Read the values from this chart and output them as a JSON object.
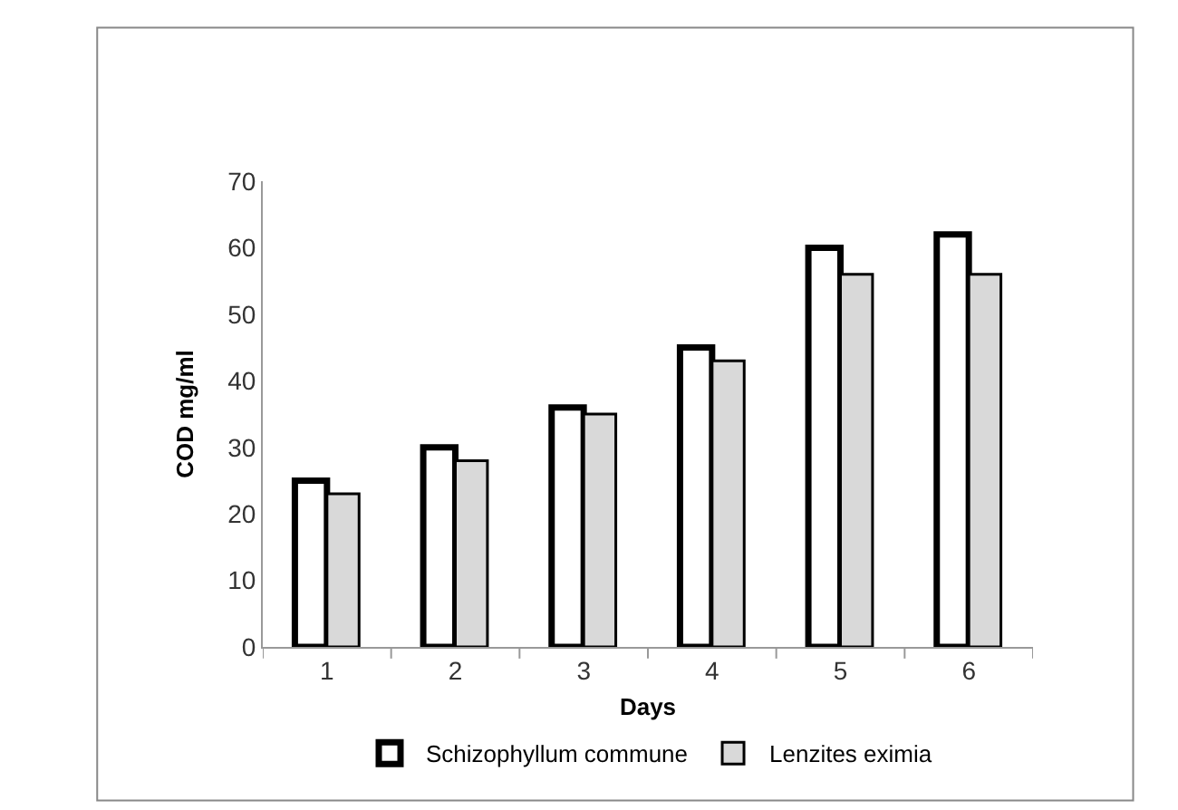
{
  "chart_data": {
    "type": "bar",
    "xlabel": "Days",
    "ylabel": "COD mg/ml",
    "categories": [
      "1",
      "2",
      "3",
      "4",
      "5",
      "6"
    ],
    "series": [
      {
        "name": "Schizophyllum commune",
        "color": "#ffffff",
        "values": [
          25,
          30,
          36,
          45,
          60,
          62
        ]
      },
      {
        "name": "Lenzites eximia",
        "color": "#d9d9d9",
        "values": [
          23,
          28,
          35,
          43,
          56,
          56
        ]
      }
    ],
    "ylim": [
      0,
      70
    ],
    "yticks": [
      0,
      10,
      20,
      30,
      40,
      50,
      60,
      70
    ],
    "legend": "bottom"
  }
}
